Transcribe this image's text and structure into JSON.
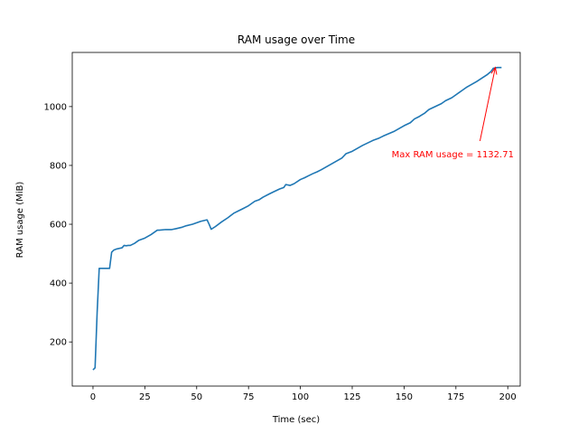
{
  "chart_data": {
    "type": "line",
    "title": "RAM usage over Time",
    "xlabel": "Time (sec)",
    "ylabel": "RAM usage (MiB)",
    "xlim": [
      -10,
      206
    ],
    "ylim": [
      50,
      1184
    ],
    "xticks": [
      0,
      25,
      50,
      75,
      100,
      125,
      150,
      175,
      200
    ],
    "yticks": [
      200,
      400,
      600,
      800,
      1000
    ],
    "grid": false,
    "series": [
      {
        "color": "#1f77b4",
        "x": [
          0,
          1,
          2,
          3,
          4,
          5,
          6,
          7,
          8,
          9,
          10,
          11,
          12,
          14,
          15,
          16,
          17,
          18,
          20,
          22,
          25,
          28,
          30,
          31,
          32,
          35,
          38,
          40,
          43,
          45,
          48,
          50,
          52,
          55,
          56,
          57,
          59,
          62,
          65,
          68,
          70,
          72,
          75,
          78,
          80,
          82,
          85,
          87,
          90,
          92,
          93,
          95,
          97,
          100,
          102,
          104,
          106,
          108,
          110,
          115,
          120,
          122,
          125,
          130,
          135,
          138,
          140,
          145,
          150,
          153,
          155,
          157,
          160,
          162,
          165,
          168,
          170,
          173,
          175,
          178,
          180,
          185,
          190,
          192,
          193,
          195,
          197
        ],
        "y": [
          105,
          112,
          300,
          450,
          450,
          450,
          450,
          450,
          450,
          505,
          512,
          515,
          517,
          520,
          528,
          527,
          528,
          528,
          535,
          545,
          553,
          565,
          575,
          580,
          580,
          582,
          582,
          585,
          590,
          595,
          600,
          605,
          610,
          615,
          600,
          583,
          592,
          608,
          622,
          638,
          645,
          652,
          663,
          678,
          683,
          692,
          703,
          710,
          720,
          725,
          735,
          732,
          738,
          752,
          758,
          765,
          772,
          778,
          785,
          805,
          825,
          840,
          848,
          868,
          885,
          893,
          900,
          915,
          935,
          945,
          958,
          965,
          978,
          990,
          1000,
          1010,
          1020,
          1030,
          1040,
          1055,
          1065,
          1085,
          1108,
          1120,
          1130,
          1132.71,
          1132.71
        ]
      }
    ],
    "annotation": {
      "text": "Max RAM usage = 1132.71",
      "color": "#ff0000",
      "point": [
        194,
        1132.71
      ],
      "text_pos": [
        144,
        840
      ]
    }
  }
}
